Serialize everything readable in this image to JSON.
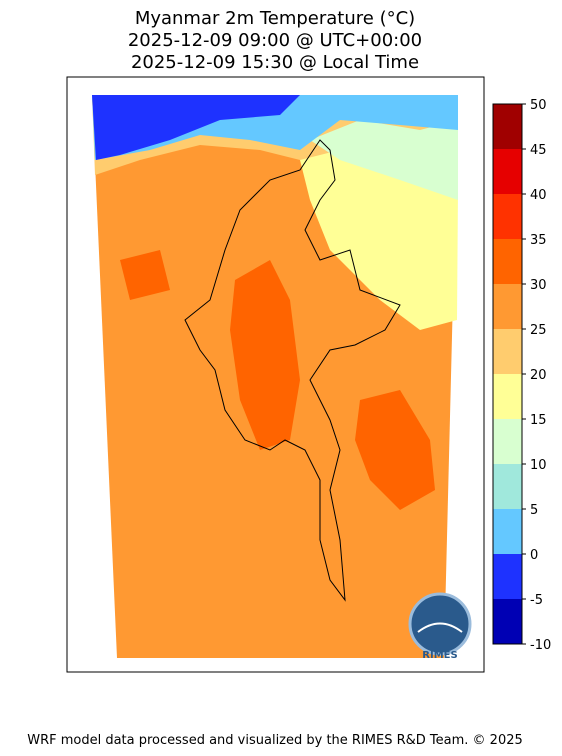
{
  "title": [
    "Myanmar 2m Temperature (°C)",
    "2025-12-09 09:00 @ UTC+00:00",
    "2025-12-09 15:30 @ Local Time"
  ],
  "colorbar": {
    "levels": [
      -10,
      -5,
      0,
      5,
      10,
      15,
      20,
      25,
      30,
      35,
      40,
      45,
      50
    ],
    "colors": [
      "#0000b4",
      "#1e32ff",
      "#64c8ff",
      "#a0e8dc",
      "#d8ffd0",
      "#ffff96",
      "#ffcc6e",
      "#ff9932",
      "#ff6400",
      "#ff3200",
      "#e60000",
      "#a00000"
    ]
  },
  "logo": "RIMES",
  "footer": "WRF model data processed and visualized by the RIMES R&D Team. © 2025"
}
